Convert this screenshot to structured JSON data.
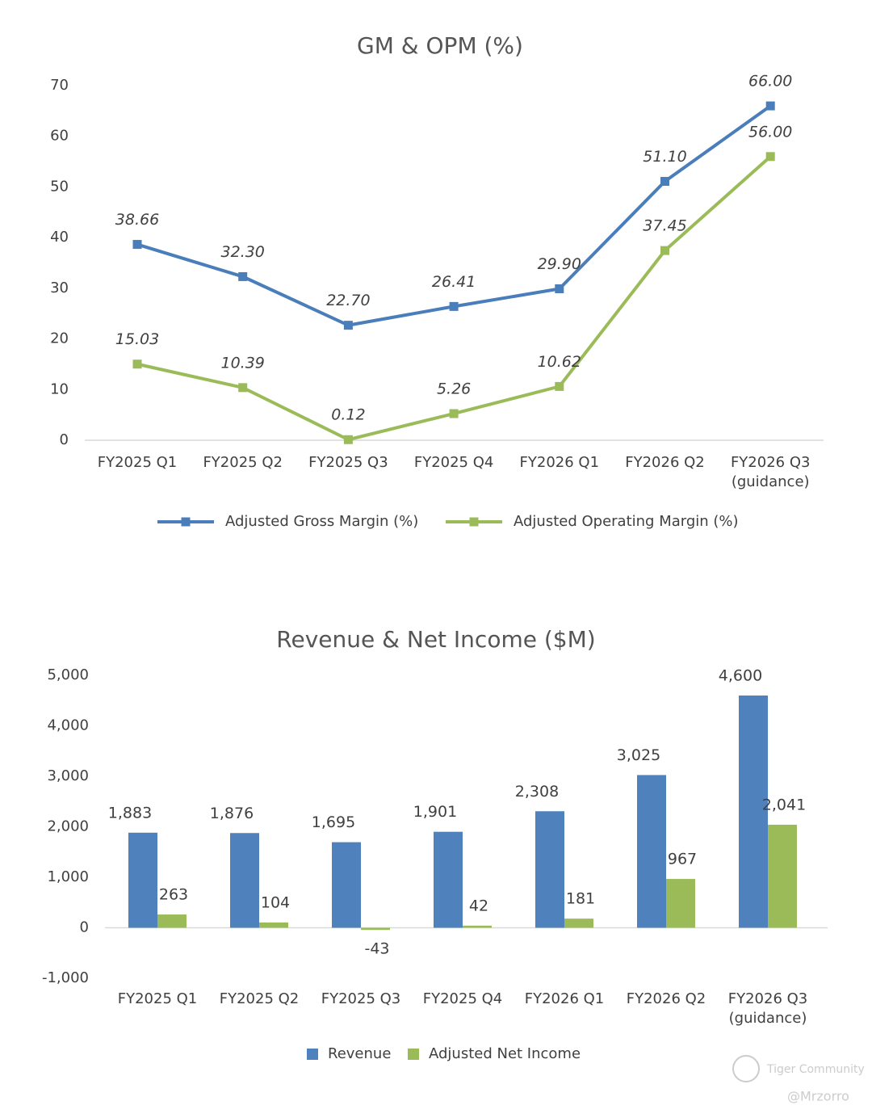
{
  "chart_data": [
    {
      "type": "line",
      "title": "GM & OPM (%)",
      "categories": [
        "FY2025 Q1",
        "FY2025 Q2",
        "FY2025 Q3",
        "FY2025 Q4",
        "FY2026 Q1",
        "FY2026 Q2",
        "FY2026 Q3 (guidance)"
      ],
      "series": [
        {
          "name": "Adjusted Gross Margin (%)",
          "color": "#4a7ebb",
          "values": [
            38.66,
            32.3,
            22.7,
            26.41,
            29.9,
            51.1,
            66.0
          ],
          "value_labels": [
            "38.66",
            "32.30",
            "22.70",
            "26.41",
            "29.90",
            "51.10",
            "66.00"
          ]
        },
        {
          "name": "Adjusted Operating Margin (%)",
          "color": "#9bbb59",
          "values": [
            15.03,
            10.39,
            0.12,
            5.26,
            10.62,
            37.45,
            56.0
          ],
          "value_labels": [
            "15.03",
            "10.39",
            "0.12",
            "5.26",
            "10.62",
            "37.45",
            "56.00"
          ]
        }
      ],
      "ylim": [
        0,
        70
      ],
      "yticks": [
        0,
        10,
        20,
        30,
        40,
        50,
        60,
        70
      ],
      "legend": "bottom"
    },
    {
      "type": "bar",
      "title": "Revenue & Net Income ($M)",
      "categories": [
        "FY2025 Q1",
        "FY2025 Q2",
        "FY2025 Q3",
        "FY2025 Q4",
        "FY2026 Q1",
        "FY2026 Q2",
        "FY2026 Q3 (guidance)"
      ],
      "series": [
        {
          "name": "Revenue",
          "color": "#4f81bd",
          "values": [
            1883,
            1876,
            1695,
            1901,
            2308,
            3025,
            4600
          ],
          "value_labels": [
            "1,883",
            "1,876",
            "1,695",
            "1,901",
            "2,308",
            "3,025",
            "4,600"
          ]
        },
        {
          "name": "Adjusted Net Income",
          "color": "#9bbb59",
          "values": [
            263,
            104,
            -43,
            42,
            181,
            967,
            2041
          ],
          "value_labels": [
            "263",
            "104",
            "-43",
            "42",
            "181",
            "967",
            "2,041"
          ]
        }
      ],
      "ylim": [
        -1000,
        5000
      ],
      "yticks": [
        {
          "value": -1000,
          "label": "-1,000"
        },
        0,
        {
          "value": 1000,
          "label": "1,000"
        },
        {
          "value": 2000,
          "label": "2,000"
        },
        {
          "value": 3000,
          "label": "3,000"
        },
        {
          "value": 4000,
          "label": "4,000"
        },
        {
          "value": 5000,
          "label": "5,000"
        }
      ],
      "legend": "bottom"
    }
  ],
  "watermark": {
    "brand": "Tiger Community",
    "author": "@Mrzorro"
  }
}
